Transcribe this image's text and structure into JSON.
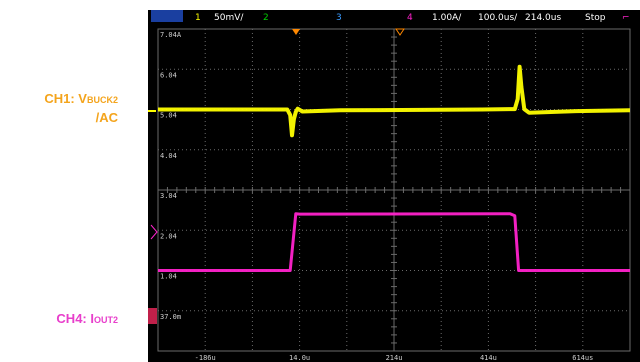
{
  "labels": {
    "ch1": {
      "main": "CH1: V",
      "sub": "BUCK2",
      "tail": "/AC"
    },
    "ch4": {
      "main": "CH4: I",
      "sub": "OUT2"
    }
  },
  "status": {
    "run_state": "",
    "ch1_num": "1",
    "ch1_scale": "50mV/",
    "ch2_num": "2",
    "ch3_num": "3",
    "ch4_num": "4",
    "ch4_scale": "1.00A/",
    "time_scale": "100.0us/",
    "trigger_pos": "214.0us",
    "acq_state": "Stop",
    "trigger_icon": "trigger-slope-icon"
  },
  "y_labels": [
    "7.04A",
    "6.04",
    "5.04",
    "4.04",
    "3.04",
    "2.04",
    "1.04",
    "37.0m"
  ],
  "x_labels": [
    "-186u",
    "14.0u",
    "214u",
    "414u",
    "614us"
  ],
  "colors": {
    "ch1": "#ffff00",
    "ch2": "#00cc00",
    "ch3": "#3b9cff",
    "ch4": "#ff22cc",
    "trigger_marker": "#ff8800",
    "grid": "#6a6a6a",
    "label_orange": "#f4a41c",
    "label_magenta": "#e83ecb"
  },
  "chart_data": {
    "type": "line",
    "x_unit": "us",
    "time_per_div": "100.0us",
    "x_range": [
      -286,
      714
    ],
    "y_divisions": 8,
    "series": [
      {
        "name": "1",
        "points": [
          [
            -286,
            5.04
          ],
          [
            -12,
            5.04
          ],
          [
            -6,
            4.9
          ],
          [
            -2,
            4.4
          ],
          [
            2,
            4.8
          ],
          [
            6,
            4.98
          ],
          [
            10,
            5.06
          ],
          [
            20,
            4.99
          ],
          [
            100,
            5.02
          ],
          [
            400,
            5.04
          ],
          [
            470,
            5.05
          ],
          [
            476,
            5.3
          ],
          [
            480,
            6.1
          ],
          [
            484,
            5.6
          ],
          [
            490,
            5.05
          ],
          [
            500,
            4.96
          ],
          [
            600,
            5.0
          ],
          [
            714,
            5.02
          ]
        ]
      },
      {
        "name": "4",
        "points": [
          [
            -286,
            1.04
          ],
          [
            -6,
            1.04
          ],
          [
            6,
            2.45
          ],
          [
            14,
            2.44
          ],
          [
            460,
            2.45
          ],
          [
            470,
            2.4
          ],
          [
            478,
            1.04
          ],
          [
            714,
            1.04
          ]
        ]
      }
    ]
  }
}
